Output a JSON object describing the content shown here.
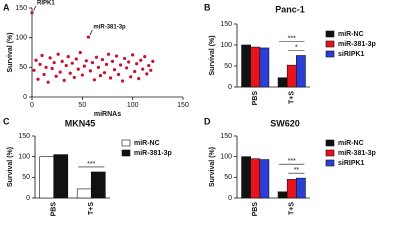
{
  "chart_data": [
    {
      "type": "scatter",
      "label": "A",
      "x_label": "miRNAs",
      "y_label": "Survival (%)",
      "color": "#c8102e",
      "x": [
        0,
        2,
        4,
        6,
        8,
        10,
        12,
        14,
        16,
        18,
        20,
        22,
        24,
        26,
        28,
        30,
        32,
        34,
        36,
        38,
        40,
        42,
        44,
        46,
        48,
        50,
        52,
        54,
        56,
        58,
        60,
        62,
        64,
        66,
        68,
        70,
        72,
        74,
        76,
        78,
        80,
        82,
        84,
        86,
        88,
        90,
        92,
        94,
        96,
        98,
        100,
        102,
        104,
        106,
        108,
        110,
        112,
        114,
        116,
        118,
        120
      ],
      "values": [
        142,
        45,
        62,
        30,
        55,
        70,
        38,
        50,
        25,
        66,
        48,
        58,
        35,
        72,
        42,
        60,
        28,
        53,
        68,
        40,
        57,
        33,
        64,
        47,
        75,
        37,
        52,
        61,
        101,
        44,
        58,
        29,
        67,
        50,
        36,
        63,
        41,
        55,
        72,
        32,
        60,
        46,
        69,
        38,
        54,
        27,
        65,
        49,
        59,
        34,
        71,
        43,
        56,
        31,
        62,
        47,
        68,
        39,
        53,
        45,
        60
      ],
      "annotations": [
        "RIPK1",
        "miR-381-3p"
      ],
      "xlim": [
        0,
        150
      ],
      "xticks": [
        0,
        50,
        100,
        150
      ],
      "ylim": [
        0,
        150
      ],
      "yticks": [
        0,
        50,
        100,
        150
      ]
    },
    {
      "type": "bar",
      "label": "B",
      "title": "Panc-1",
      "y_label": "Survival (%)",
      "categories": [
        "PBS",
        "T+S"
      ],
      "series": [
        {
          "name": "miR-NC",
          "color": "#111111",
          "values": [
            100,
            22
          ]
        },
        {
          "name": "miR-381-3p",
          "color": "#e8141c",
          "values": [
            95,
            52
          ]
        },
        {
          "name": "siRIPK1",
          "color": "#2b3fd6",
          "values": [
            93,
            75
          ]
        }
      ],
      "annotations": [
        "*",
        "***"
      ],
      "ylim": [
        0,
        150
      ],
      "yticks": [
        0,
        50,
        100,
        150
      ]
    },
    {
      "type": "bar",
      "label": "C",
      "title": "MKN45",
      "y_label": "Survival (%)",
      "categories": [
        "PBS",
        "T+S"
      ],
      "series": [
        {
          "name": "miR-NC",
          "color": "#ffffff",
          "values": [
            100,
            22
          ]
        },
        {
          "name": "miR-381-3p",
          "color": "#111111",
          "values": [
            105,
            63
          ]
        }
      ],
      "annotations": [
        "***"
      ],
      "ylim": [
        0,
        150
      ],
      "yticks": [
        0,
        50,
        100,
        150
      ]
    },
    {
      "type": "bar",
      "label": "D",
      "title": "SW620",
      "y_label": "Survival (%)",
      "categories": [
        "PBS",
        "T+S"
      ],
      "series": [
        {
          "name": "miR-NC",
          "color": "#111111",
          "values": [
            100,
            15
          ]
        },
        {
          "name": "miR-381-3p",
          "color": "#e8141c",
          "values": [
            95,
            45
          ]
        },
        {
          "name": "siRIPK1",
          "color": "#2b3fd6",
          "values": [
            93,
            48
          ]
        }
      ],
      "annotations": [
        "**",
        "***"
      ],
      "ylim": [
        0,
        150
      ],
      "yticks": [
        0,
        50,
        100,
        150
      ]
    }
  ]
}
